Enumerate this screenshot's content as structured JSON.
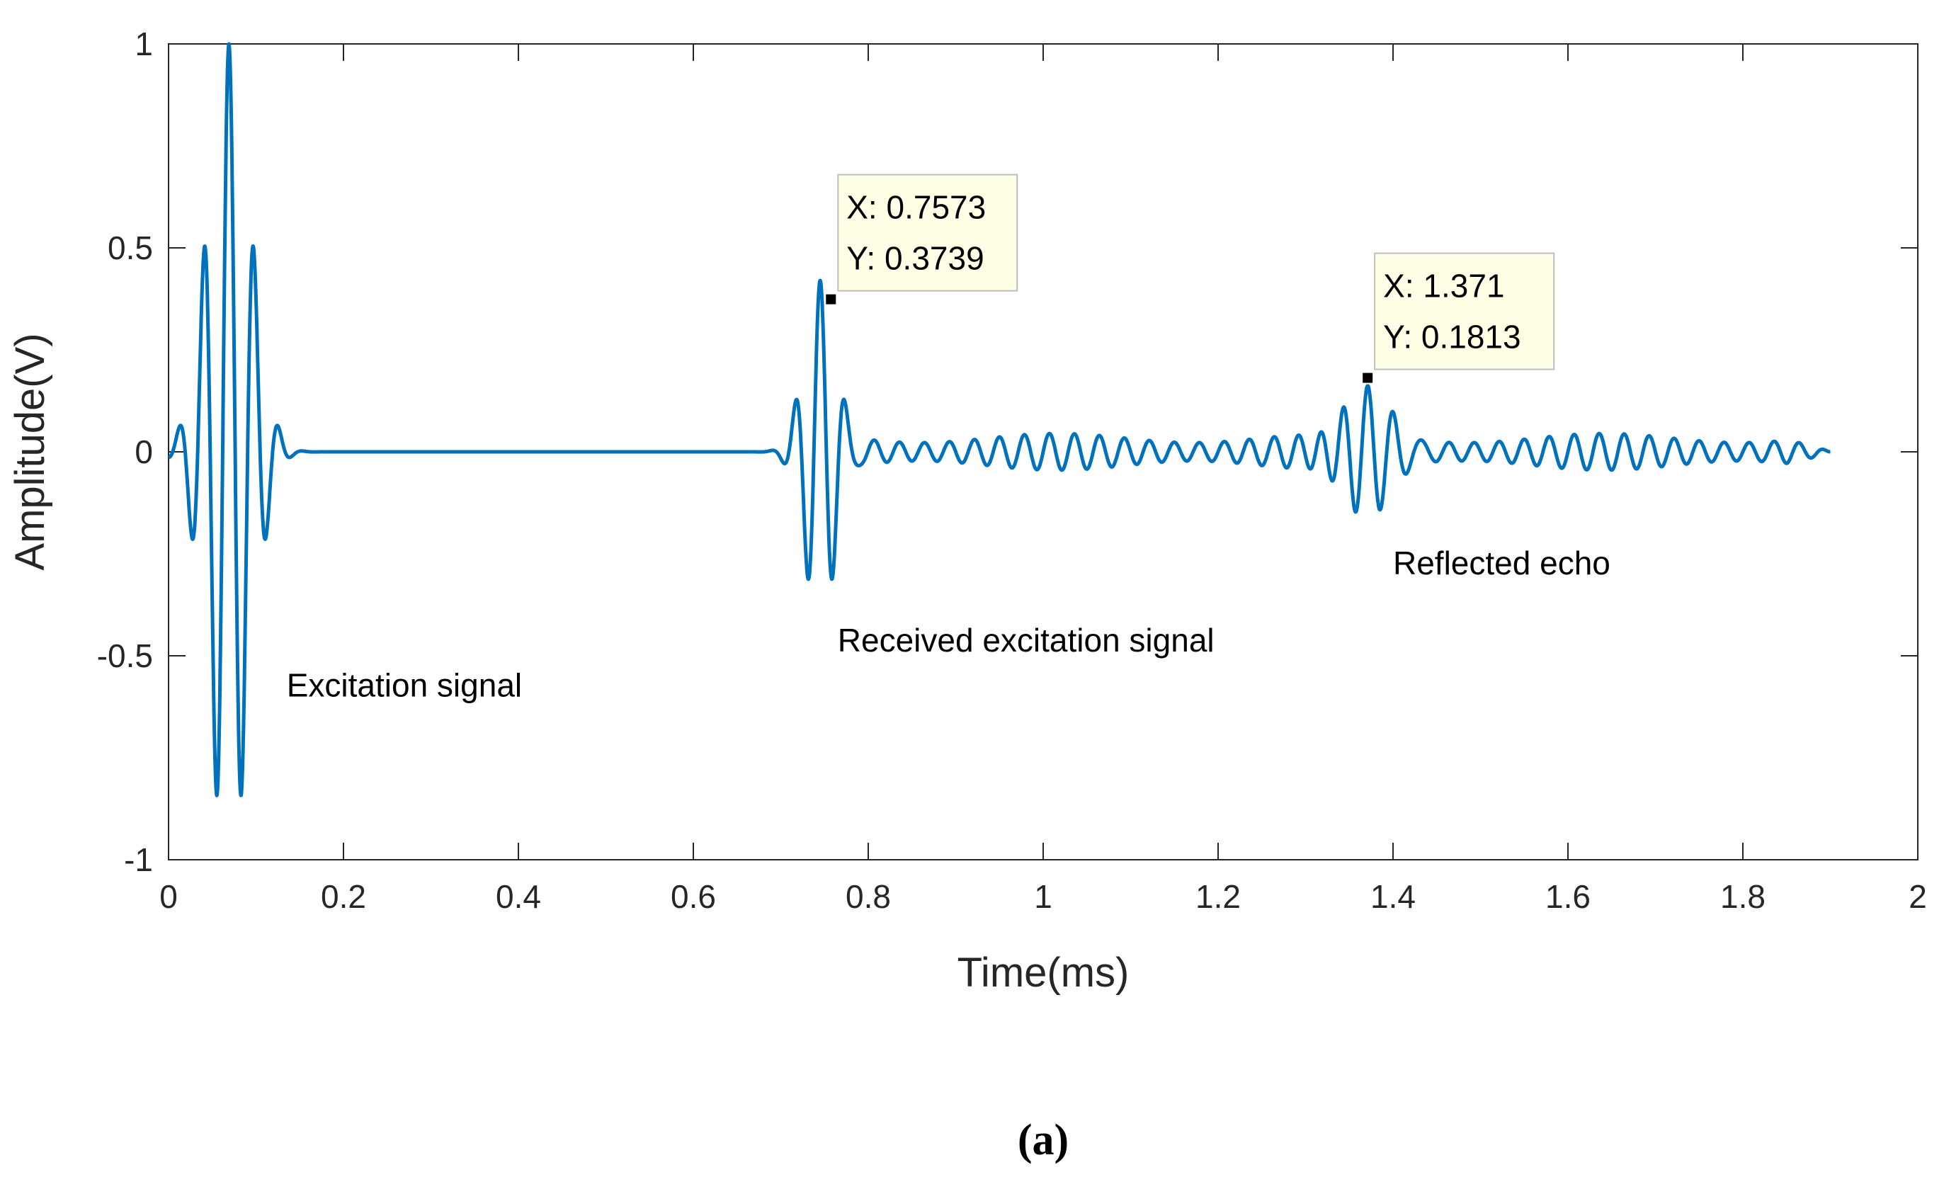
{
  "chart_data": {
    "type": "line",
    "title": "",
    "xlabel": "Time(ms)",
    "ylabel": "Amplitude(V)",
    "xlim": [
      0,
      2
    ],
    "ylim": [
      -1,
      1
    ],
    "grid": false,
    "legend": "none",
    "caption": "(a)",
    "x_ticks": [
      0,
      0.2,
      0.4,
      0.6,
      0.8,
      1,
      1.2,
      1.4,
      1.6,
      1.8,
      2
    ],
    "x_tick_labels": [
      "0",
      "0.2",
      "0.4",
      "0.6",
      "0.8",
      "1",
      "1.2",
      "1.4",
      "1.6",
      "1.8",
      "2"
    ],
    "y_ticks": [
      1,
      0.5,
      0,
      -0.5,
      -1
    ],
    "y_tick_labels": [
      "1",
      "0.5",
      "0",
      "-0.5",
      "-1"
    ],
    "line_color": "#0072BD",
    "series": [
      {
        "name": "signal",
        "x_range": [
          0,
          1.9
        ],
        "bursts": [
          {
            "center": 0.069,
            "freq_khz": 35,
            "sigma": 0.024,
            "amp": 1.0
          },
          {
            "center": 0.745,
            "freq_khz": 35,
            "sigma": 0.018,
            "amp": 0.42
          },
          {
            "center": 1.37,
            "freq_khz": 35,
            "sigma": 0.03,
            "amp": 0.17
          }
        ],
        "tail": {
          "start": 0.77,
          "end": 1.9,
          "freq_khz": 35,
          "amp": 0.045
        }
      }
    ],
    "data_tips": [
      {
        "x": 0.7573,
        "y": 0.3739,
        "line1": "X: 0.7573",
        "line2": "Y: 0.3739"
      },
      {
        "x": 1.371,
        "y": 0.1813,
        "line1": "X: 1.371",
        "line2": "Y: 0.1813"
      }
    ],
    "annotations": [
      {
        "text": "Excitation signal",
        "x": 0.135,
        "y": -0.6
      },
      {
        "text": "Received excitation signal",
        "x": 0.765,
        "y": -0.49
      },
      {
        "text": "Reflected echo",
        "x": 1.4,
        "y": -0.3
      }
    ]
  }
}
